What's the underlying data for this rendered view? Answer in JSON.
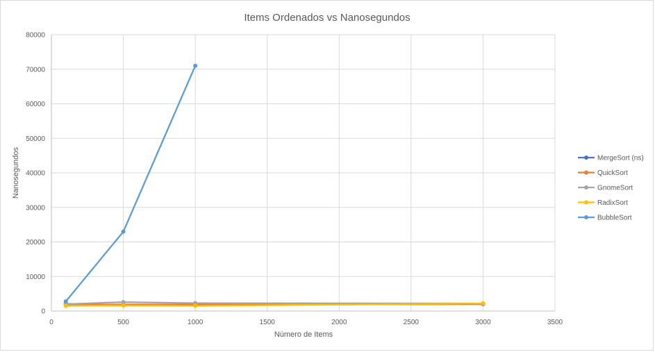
{
  "chart_data": {
    "type": "scatter",
    "title": "Items Ordenados vs Nanosegundos",
    "xlabel": "Número de Items",
    "ylabel": "Nanosegundos",
    "xlim": [
      0,
      3500
    ],
    "ylim": [
      0,
      80000
    ],
    "xticks": [
      "0",
      "500",
      "1000",
      "1500",
      "2000",
      "2500",
      "3000",
      "3500"
    ],
    "yticks": [
      "0",
      "10000",
      "20000",
      "30000",
      "40000",
      "50000",
      "60000",
      "70000",
      "80000"
    ],
    "grid": true,
    "legend_position": "right",
    "series": [
      {
        "name": "MergeSort (ns)",
        "color": "#4472c4",
        "x": [
          100,
          500,
          1000,
          3000
        ],
        "y": [
          2100,
          1700,
          1800,
          2000
        ]
      },
      {
        "name": "QuickSort",
        "color": "#ed7d31",
        "x": [
          100,
          500,
          1000,
          3000
        ],
        "y": [
          1800,
          1900,
          1900,
          2100
        ]
      },
      {
        "name": "GnomeSort",
        "color": "#a5a5a5",
        "x": [
          100,
          500,
          1000,
          3000
        ],
        "y": [
          2000,
          2600,
          2300,
          2200
        ]
      },
      {
        "name": "RadixSort",
        "color": "#ffc000",
        "x": [
          100,
          500,
          1000,
          3000
        ],
        "y": [
          1500,
          1600,
          1500,
          2200
        ]
      },
      {
        "name": "BubbleSort",
        "color": "#5b9bd5",
        "x": [
          100,
          500,
          1000
        ],
        "y": [
          2800,
          23000,
          71000
        ]
      }
    ]
  }
}
